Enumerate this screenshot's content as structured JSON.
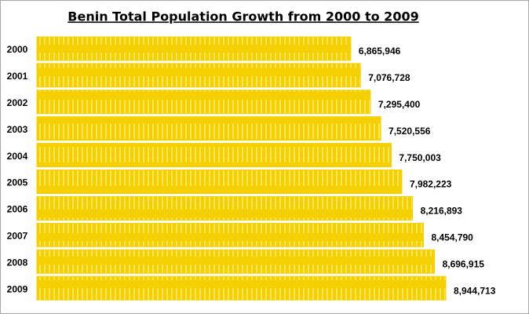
{
  "chart_data": {
    "type": "bar",
    "orientation": "horizontal",
    "title": "Benin Total Population Growth from 2000 to 2009",
    "categories": [
      "2000",
      "2001",
      "2002",
      "2003",
      "2004",
      "2005",
      "2006",
      "2007",
      "2008",
      "2009"
    ],
    "values": [
      6865946,
      7076728,
      7295400,
      7520556,
      7750003,
      7982223,
      8216893,
      8454790,
      8696915,
      8944713
    ],
    "value_labels": [
      "6,865,946",
      "7,076,728",
      "7,295,400",
      "7,520,556",
      "7,750,003",
      "7,982,223",
      "8,216,893",
      "8,454,790",
      "8,696,915",
      "8,944,713"
    ],
    "color": "#f5d000"
  }
}
